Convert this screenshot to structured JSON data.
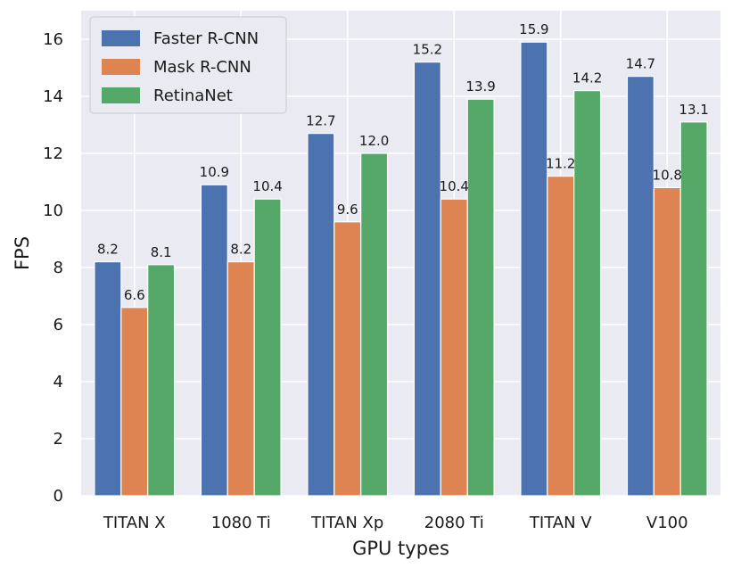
{
  "chart_data": {
    "type": "bar",
    "title": "",
    "xlabel": "GPU types",
    "ylabel": "FPS",
    "categories": [
      "TITAN X",
      "1080 Ti",
      "TITAN Xp",
      "2080 Ti",
      "TITAN V",
      "V100"
    ],
    "series": [
      {
        "name": "Faster R-CNN",
        "color": "#4c72b0",
        "values": [
          8.2,
          10.9,
          12.7,
          15.2,
          15.9,
          14.7
        ],
        "labels": [
          "8.2",
          "10.9",
          "12.7",
          "15.2",
          "15.9",
          "14.7"
        ]
      },
      {
        "name": "Mask R-CNN",
        "color": "#dd8452",
        "values": [
          6.6,
          8.2,
          9.6,
          10.4,
          11.2,
          10.8
        ],
        "labels": [
          "6.6",
          "8.2",
          "9.6",
          "10.4",
          "11.2",
          "10.8"
        ]
      },
      {
        "name": "RetinaNet",
        "color": "#55a868",
        "values": [
          8.1,
          10.4,
          12.0,
          13.9,
          14.2,
          13.1
        ],
        "labels": [
          "8.1",
          "10.4",
          "12.0",
          "13.9",
          "14.2",
          "13.1"
        ]
      }
    ],
    "ylim": [
      0,
      17
    ],
    "yticks": [
      0,
      2,
      4,
      6,
      8,
      10,
      12,
      14,
      16
    ],
    "ytick_labels": [
      "0",
      "2",
      "4",
      "6",
      "8",
      "10",
      "12",
      "14",
      "16"
    ],
    "grid": true,
    "legend": "top-left",
    "background": "#eaeaf2",
    "grid_color": "#ffffff"
  }
}
